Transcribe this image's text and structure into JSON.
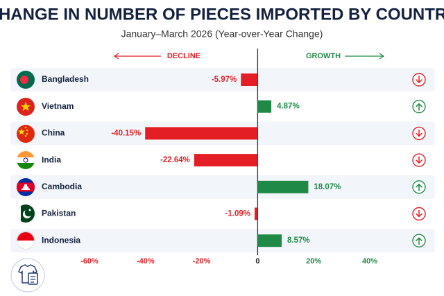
{
  "chart_data": {
    "type": "diverging-bar",
    "title": "CHANGE IN NUMBER OF PIECES IMPORTED BY COUNTRY",
    "subtitle": "January–March 2026 (Year-over-Year Change)",
    "decline_label": "DECLINE",
    "growth_label": "GROWTH",
    "categories": [
      "Bangladesh",
      "Vietnam",
      "China",
      "India",
      "Cambodia",
      "Pakistan",
      "Indonesia"
    ],
    "values": [
      -5.97,
      4.87,
      -40.15,
      -22.64,
      18.07,
      -1.09,
      8.57
    ],
    "value_labels": [
      "-5.97%",
      "4.87%",
      "-40.15%",
      "-22.64%",
      "18.07%",
      "-1.09%",
      "8.57%"
    ],
    "negative_color": "#e31e24",
    "positive_color": "#1f8a47",
    "xlim": [
      -60,
      40
    ],
    "xticks": [
      {
        "value": -60,
        "label": "-60%"
      },
      {
        "value": -40,
        "label": "-40%"
      },
      {
        "value": -20,
        "label": "-20%"
      },
      0,
      {
        "value": 20,
        "label": "20%"
      },
      {
        "value": 40,
        "label": "40%"
      }
    ]
  }
}
